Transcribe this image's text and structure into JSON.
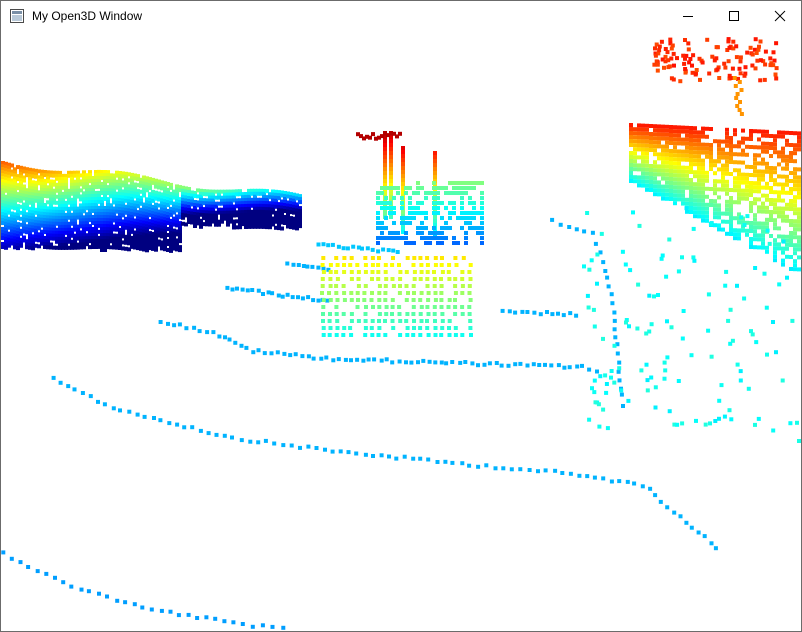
{
  "window": {
    "title": "My Open3D Window",
    "controls": [
      "minimize",
      "maximize",
      "close"
    ]
  },
  "viewport": {
    "background": "#ffffff",
    "colormap": "jet",
    "point_cloud": "lidar-scan"
  },
  "icons": {
    "app": "open3d-window-icon",
    "minimize": "minimize-icon",
    "maximize": "maximize-icon",
    "close": "close-icon"
  }
}
